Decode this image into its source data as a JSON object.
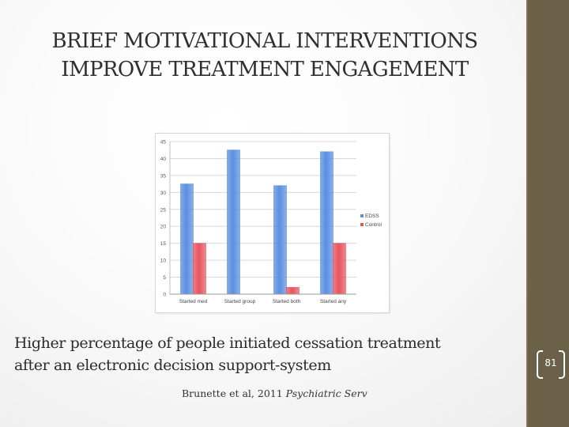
{
  "slide": {
    "title_lines": [
      "BRIEF MOTIVATIONAL INTERVENTIONS",
      "IMPROVE TREATMENT ENGAGEMENT"
    ],
    "body_lines": [
      "Higher percentage of people initiated cessation treatment",
      "after an electronic decision support-system"
    ],
    "citation_authors": "Brunette et al, 2011 ",
    "citation_journal": "Psychiatric Serv",
    "page_number": "81",
    "accent_color": "#6b6048"
  },
  "chart_data": {
    "type": "bar",
    "categories": [
      "Started med",
      "Started  group",
      "Started both",
      "Started any"
    ],
    "series": [
      {
        "name": "EDSS",
        "values": [
          32.5,
          42.5,
          32,
          42
        ],
        "color": "#5b8fe0"
      },
      {
        "name": "Control",
        "values": [
          15,
          0,
          2,
          15
        ],
        "color": "#e8545e"
      }
    ],
    "ylim": [
      0,
      45
    ],
    "yticks": [
      0,
      5,
      10,
      15,
      20,
      25,
      30,
      35,
      40,
      45
    ],
    "grid": true,
    "legend_position": "right",
    "title": "",
    "xlabel": "",
    "ylabel": ""
  }
}
